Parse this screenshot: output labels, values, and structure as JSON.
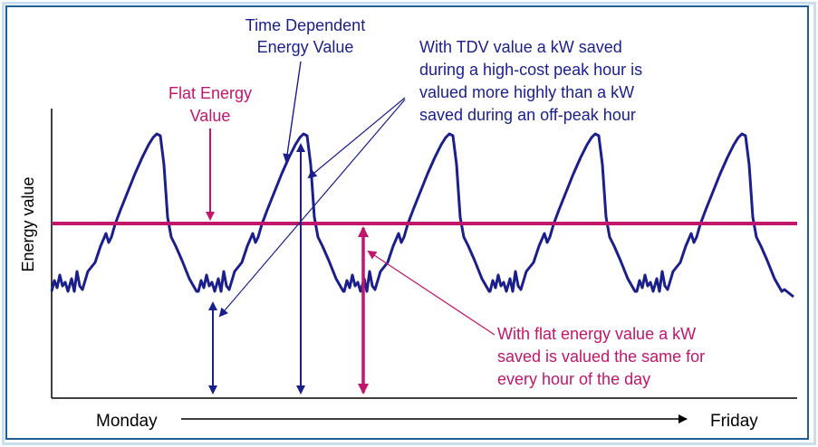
{
  "labels": {
    "tdv_title_line1": "Time Dependent",
    "tdv_title_line2": "Energy Value",
    "flat_title_line1": "Flat Energy",
    "flat_title_line2": "Value",
    "tdv_note": [
      "With TDV value a kW saved",
      "during a high-cost peak hour is",
      "valued more highly than a kW",
      "saved during an off-peak hour"
    ],
    "flat_note": [
      "With flat energy value a kW",
      "saved is valued the same for",
      "every hour of the day"
    ],
    "y_axis": "Energy value",
    "x_start": "Monday",
    "x_end": "Friday"
  },
  "colors": {
    "tdv_curve": "#1a1f8c",
    "flat_line": "#c0166b",
    "tdv_text": "#1a1f8c",
    "flat_text": "#c0166b",
    "axis": "#000000",
    "frame": "#1f5f94"
  },
  "series": {
    "days": 5,
    "pattern": "daily peak; shape repeats each day Monday to Friday",
    "flat_level_fraction_of_axis": 0.61
  }
}
